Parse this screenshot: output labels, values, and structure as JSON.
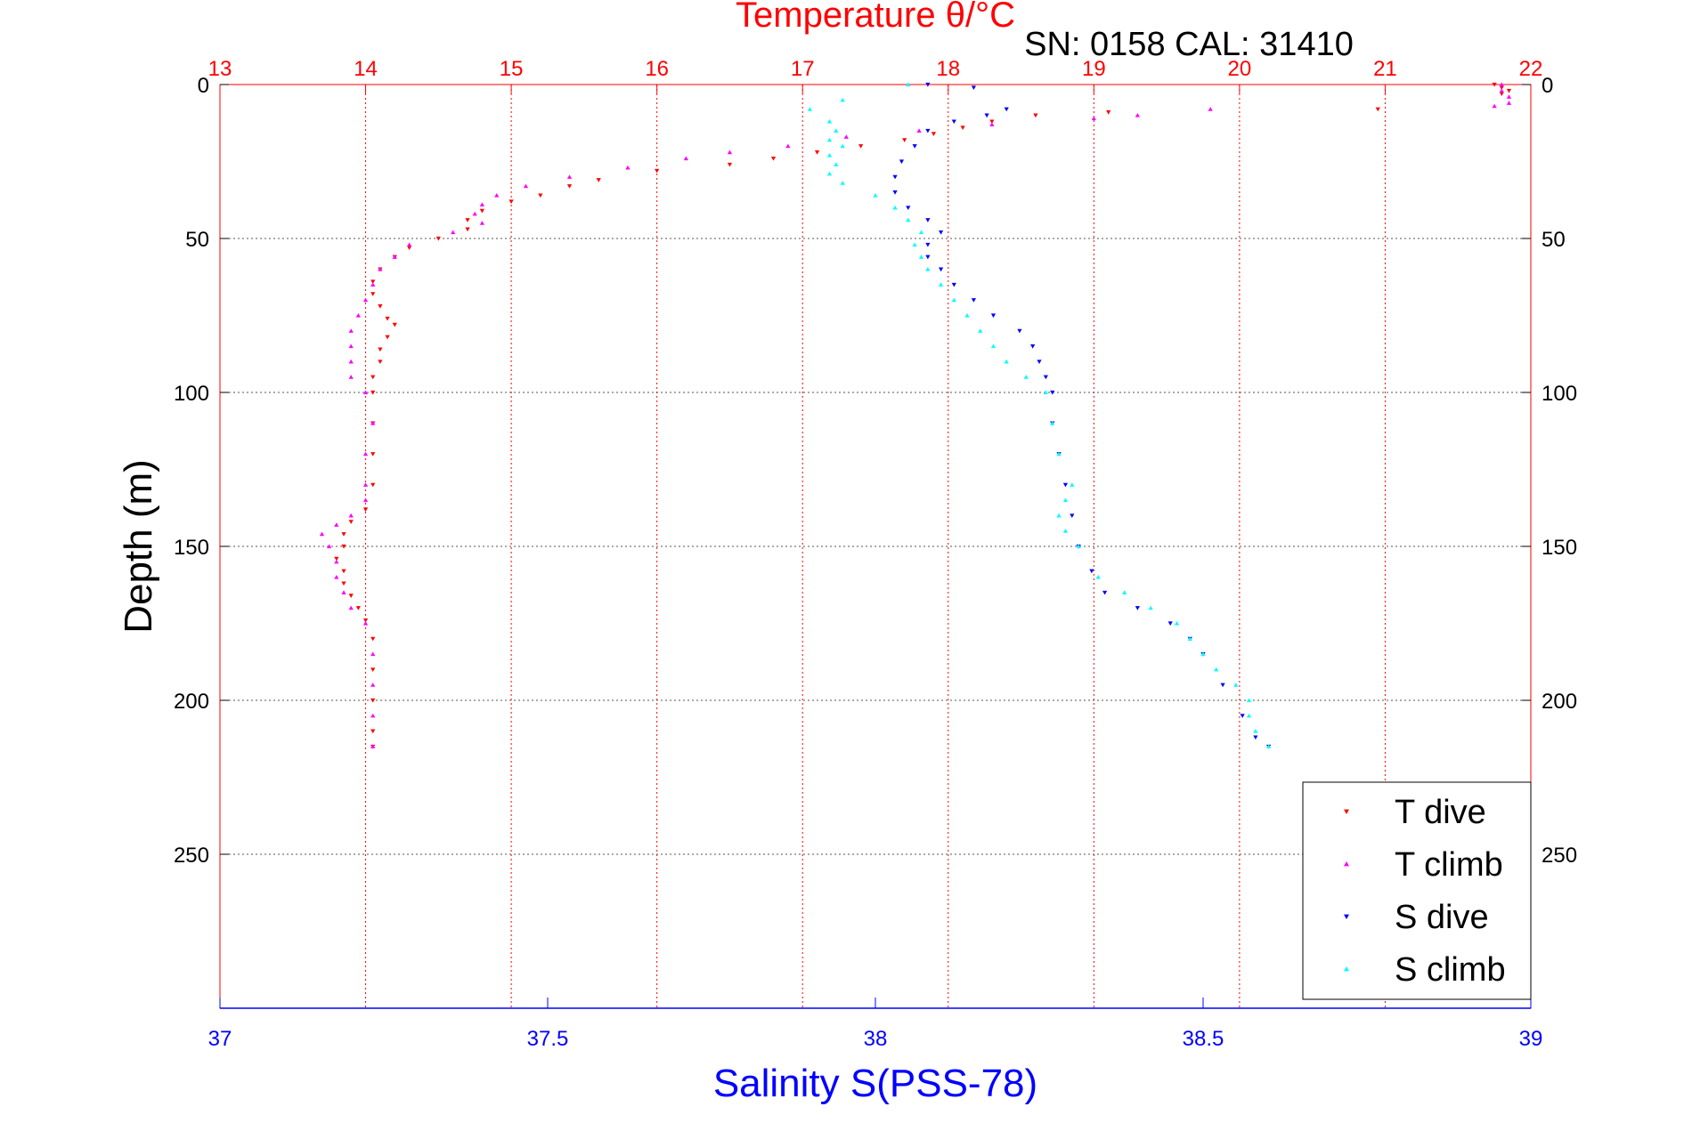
{
  "chart_data": {
    "type": "scatter",
    "title": "Temperature θ/°C",
    "subtitle": "SN: 0158  CAL: 31410",
    "xlabel": "Salinity S(PSS-78)",
    "ylabel": "Depth (m)",
    "top_axis": {
      "label": "Temperature θ/°C",
      "range": [
        13,
        22
      ],
      "ticks": [
        "13",
        "14",
        "15",
        "16",
        "17",
        "18",
        "19",
        "20",
        "21",
        "22"
      ],
      "color": "#ff0000"
    },
    "bottom_axis": {
      "label": "Salinity S(PSS-78)",
      "range": [
        37,
        39
      ],
      "ticks": [
        "37",
        "37.5",
        "38",
        "38.5",
        "39"
      ],
      "color": "#0000ff"
    },
    "y_axis": {
      "range": [
        0,
        300
      ],
      "reversed": true,
      "ticks": [
        "0",
        "50",
        "100",
        "150",
        "200",
        "250"
      ]
    },
    "grid": true,
    "legend_position": "bottom-right",
    "series": [
      {
        "name": "T dive",
        "axis": "top",
        "marker": "triangle-down",
        "color": "#ff0000",
        "points": [
          [
            21.75,
            0
          ],
          [
            21.8,
            1
          ],
          [
            21.85,
            2
          ],
          [
            21.8,
            3
          ],
          [
            20.95,
            8
          ],
          [
            19.1,
            9
          ],
          [
            18.6,
            10
          ],
          [
            18.3,
            12
          ],
          [
            18.1,
            14
          ],
          [
            17.9,
            16
          ],
          [
            17.7,
            18
          ],
          [
            17.4,
            20
          ],
          [
            17.1,
            22
          ],
          [
            16.8,
            24
          ],
          [
            16.5,
            26
          ],
          [
            16.0,
            28
          ],
          [
            15.6,
            31
          ],
          [
            15.4,
            33
          ],
          [
            15.2,
            36
          ],
          [
            15.0,
            38
          ],
          [
            14.8,
            41
          ],
          [
            14.7,
            44
          ],
          [
            14.7,
            47
          ],
          [
            14.5,
            50
          ],
          [
            14.3,
            53
          ],
          [
            14.2,
            56
          ],
          [
            14.1,
            60
          ],
          [
            14.05,
            64
          ],
          [
            14.05,
            68
          ],
          [
            14.1,
            72
          ],
          [
            14.15,
            76
          ],
          [
            14.2,
            78
          ],
          [
            14.15,
            82
          ],
          [
            14.1,
            86
          ],
          [
            14.1,
            90
          ],
          [
            14.05,
            95
          ],
          [
            14.05,
            100
          ],
          [
            14.05,
            110
          ],
          [
            14.05,
            120
          ],
          [
            14.05,
            130
          ],
          [
            14.0,
            138
          ],
          [
            13.9,
            142
          ],
          [
            13.85,
            146
          ],
          [
            13.85,
            150
          ],
          [
            13.8,
            154
          ],
          [
            13.85,
            158
          ],
          [
            13.85,
            162
          ],
          [
            13.9,
            166
          ],
          [
            13.95,
            170
          ],
          [
            14.0,
            174
          ],
          [
            14.05,
            180
          ],
          [
            14.05,
            190
          ],
          [
            14.05,
            200
          ],
          [
            14.05,
            210
          ],
          [
            14.05,
            215
          ]
        ]
      },
      {
        "name": "T climb",
        "axis": "top",
        "marker": "triangle-up",
        "color": "#ff00ff",
        "points": [
          [
            21.8,
            0
          ],
          [
            21.8,
            2
          ],
          [
            21.85,
            4
          ],
          [
            21.85,
            6
          ],
          [
            21.75,
            7
          ],
          [
            19.8,
            8
          ],
          [
            19.3,
            10
          ],
          [
            19.0,
            11
          ],
          [
            18.3,
            13
          ],
          [
            17.8,
            15
          ],
          [
            17.3,
            17
          ],
          [
            16.9,
            20
          ],
          [
            16.5,
            22
          ],
          [
            16.2,
            24
          ],
          [
            15.8,
            27
          ],
          [
            15.4,
            30
          ],
          [
            15.1,
            33
          ],
          [
            14.9,
            36
          ],
          [
            14.8,
            39
          ],
          [
            14.75,
            42
          ],
          [
            14.8,
            45
          ],
          [
            14.6,
            48
          ],
          [
            14.3,
            52
          ],
          [
            14.2,
            56
          ],
          [
            14.1,
            60
          ],
          [
            14.05,
            65
          ],
          [
            14.0,
            70
          ],
          [
            13.95,
            75
          ],
          [
            13.9,
            80
          ],
          [
            13.9,
            85
          ],
          [
            13.9,
            90
          ],
          [
            13.9,
            95
          ],
          [
            14.0,
            100
          ],
          [
            14.05,
            110
          ],
          [
            14.0,
            120
          ],
          [
            14.0,
            130
          ],
          [
            14.0,
            135
          ],
          [
            13.9,
            140
          ],
          [
            13.8,
            143
          ],
          [
            13.7,
            146
          ],
          [
            13.75,
            150
          ],
          [
            13.8,
            155
          ],
          [
            13.8,
            160
          ],
          [
            13.85,
            165
          ],
          [
            13.9,
            170
          ],
          [
            14.0,
            175
          ],
          [
            14.05,
            185
          ],
          [
            14.05,
            195
          ],
          [
            14.05,
            205
          ],
          [
            14.05,
            215
          ]
        ]
      },
      {
        "name": "S dive",
        "axis": "bottom",
        "marker": "triangle-down",
        "color": "#0000ff",
        "points": [
          [
            38.08,
            0
          ],
          [
            38.15,
            1
          ],
          [
            38.2,
            8
          ],
          [
            38.17,
            10
          ],
          [
            38.12,
            12
          ],
          [
            38.08,
            15
          ],
          [
            38.06,
            20
          ],
          [
            38.04,
            25
          ],
          [
            38.03,
            30
          ],
          [
            38.03,
            35
          ],
          [
            38.05,
            40
          ],
          [
            38.08,
            44
          ],
          [
            38.1,
            48
          ],
          [
            38.08,
            52
          ],
          [
            38.08,
            56
          ],
          [
            38.1,
            60
          ],
          [
            38.12,
            65
          ],
          [
            38.15,
            70
          ],
          [
            38.18,
            75
          ],
          [
            38.22,
            80
          ],
          [
            38.24,
            85
          ],
          [
            38.25,
            90
          ],
          [
            38.26,
            95
          ],
          [
            38.27,
            100
          ],
          [
            38.27,
            110
          ],
          [
            38.28,
            120
          ],
          [
            38.29,
            130
          ],
          [
            38.3,
            140
          ],
          [
            38.31,
            150
          ],
          [
            38.33,
            158
          ],
          [
            38.35,
            165
          ],
          [
            38.4,
            170
          ],
          [
            38.45,
            175
          ],
          [
            38.48,
            180
          ],
          [
            38.5,
            185
          ],
          [
            38.53,
            195
          ],
          [
            38.56,
            205
          ],
          [
            38.58,
            212
          ],
          [
            38.6,
            215
          ]
        ]
      },
      {
        "name": "S climb",
        "axis": "bottom",
        "marker": "triangle-up",
        "color": "#00ffff",
        "points": [
          [
            38.05,
            0
          ],
          [
            37.95,
            5
          ],
          [
            37.9,
            8
          ],
          [
            37.93,
            12
          ],
          [
            37.94,
            15
          ],
          [
            37.93,
            18
          ],
          [
            37.95,
            20
          ],
          [
            37.93,
            23
          ],
          [
            37.94,
            26
          ],
          [
            37.93,
            29
          ],
          [
            37.95,
            32
          ],
          [
            38.0,
            36
          ],
          [
            38.03,
            40
          ],
          [
            38.05,
            44
          ],
          [
            38.07,
            48
          ],
          [
            38.06,
            52
          ],
          [
            38.07,
            56
          ],
          [
            38.08,
            60
          ],
          [
            38.1,
            65
          ],
          [
            38.12,
            70
          ],
          [
            38.14,
            75
          ],
          [
            38.16,
            80
          ],
          [
            38.18,
            85
          ],
          [
            38.2,
            90
          ],
          [
            38.23,
            95
          ],
          [
            38.26,
            100
          ],
          [
            38.27,
            110
          ],
          [
            38.28,
            120
          ],
          [
            38.3,
            130
          ],
          [
            38.29,
            135
          ],
          [
            38.28,
            140
          ],
          [
            38.29,
            145
          ],
          [
            38.31,
            150
          ],
          [
            38.34,
            160
          ],
          [
            38.38,
            165
          ],
          [
            38.42,
            170
          ],
          [
            38.46,
            175
          ],
          [
            38.48,
            180
          ],
          [
            38.5,
            185
          ],
          [
            38.52,
            190
          ],
          [
            38.55,
            195
          ],
          [
            38.57,
            200
          ],
          [
            38.57,
            205
          ],
          [
            38.58,
            210
          ],
          [
            38.6,
            215
          ]
        ]
      }
    ]
  }
}
